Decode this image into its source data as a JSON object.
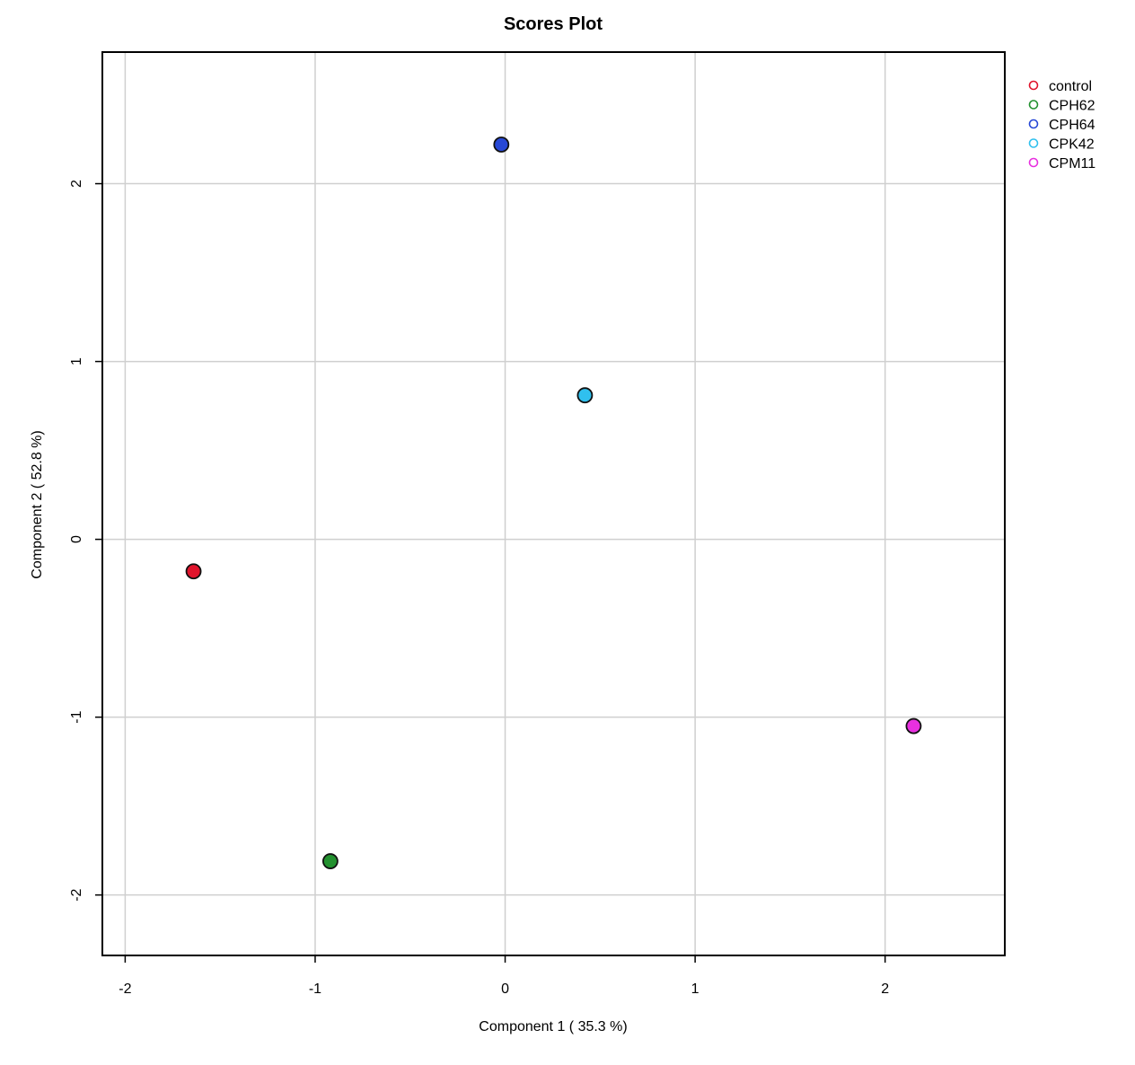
{
  "chart_data": {
    "type": "scatter",
    "title": "Scores Plot",
    "xlabel": "Component 1 ( 35.3 %)",
    "ylabel": "Component 2 ( 52.8 %)",
    "xlim": [
      -2.12,
      2.63
    ],
    "ylim": [
      -2.34,
      2.74
    ],
    "xticks": [
      -2,
      -1,
      0,
      1,
      2
    ],
    "yticks": [
      -2,
      -1,
      0,
      1,
      2
    ],
    "x_tick_labels": [
      "-2",
      "-1",
      "0",
      "1",
      "2"
    ],
    "y_tick_labels": [
      "-2",
      "-1",
      "0",
      "1",
      "2"
    ],
    "grid": true,
    "legend_position": "top-right, outside plot",
    "series": [
      {
        "name": "control",
        "color": "#e0142c",
        "points": [
          {
            "x": -1.64,
            "y": -0.18
          }
        ]
      },
      {
        "name": "CPH62",
        "color": "#23912f",
        "points": [
          {
            "x": -0.92,
            "y": -1.81
          }
        ]
      },
      {
        "name": "CPH64",
        "color": "#2748d6",
        "points": [
          {
            "x": -0.02,
            "y": 2.22
          }
        ]
      },
      {
        "name": "CPK42",
        "color": "#30c0ee",
        "points": [
          {
            "x": 0.42,
            "y": 0.81
          }
        ]
      },
      {
        "name": "CPM11",
        "color": "#e830e0",
        "points": [
          {
            "x": 2.15,
            "y": -1.05
          }
        ]
      }
    ]
  }
}
